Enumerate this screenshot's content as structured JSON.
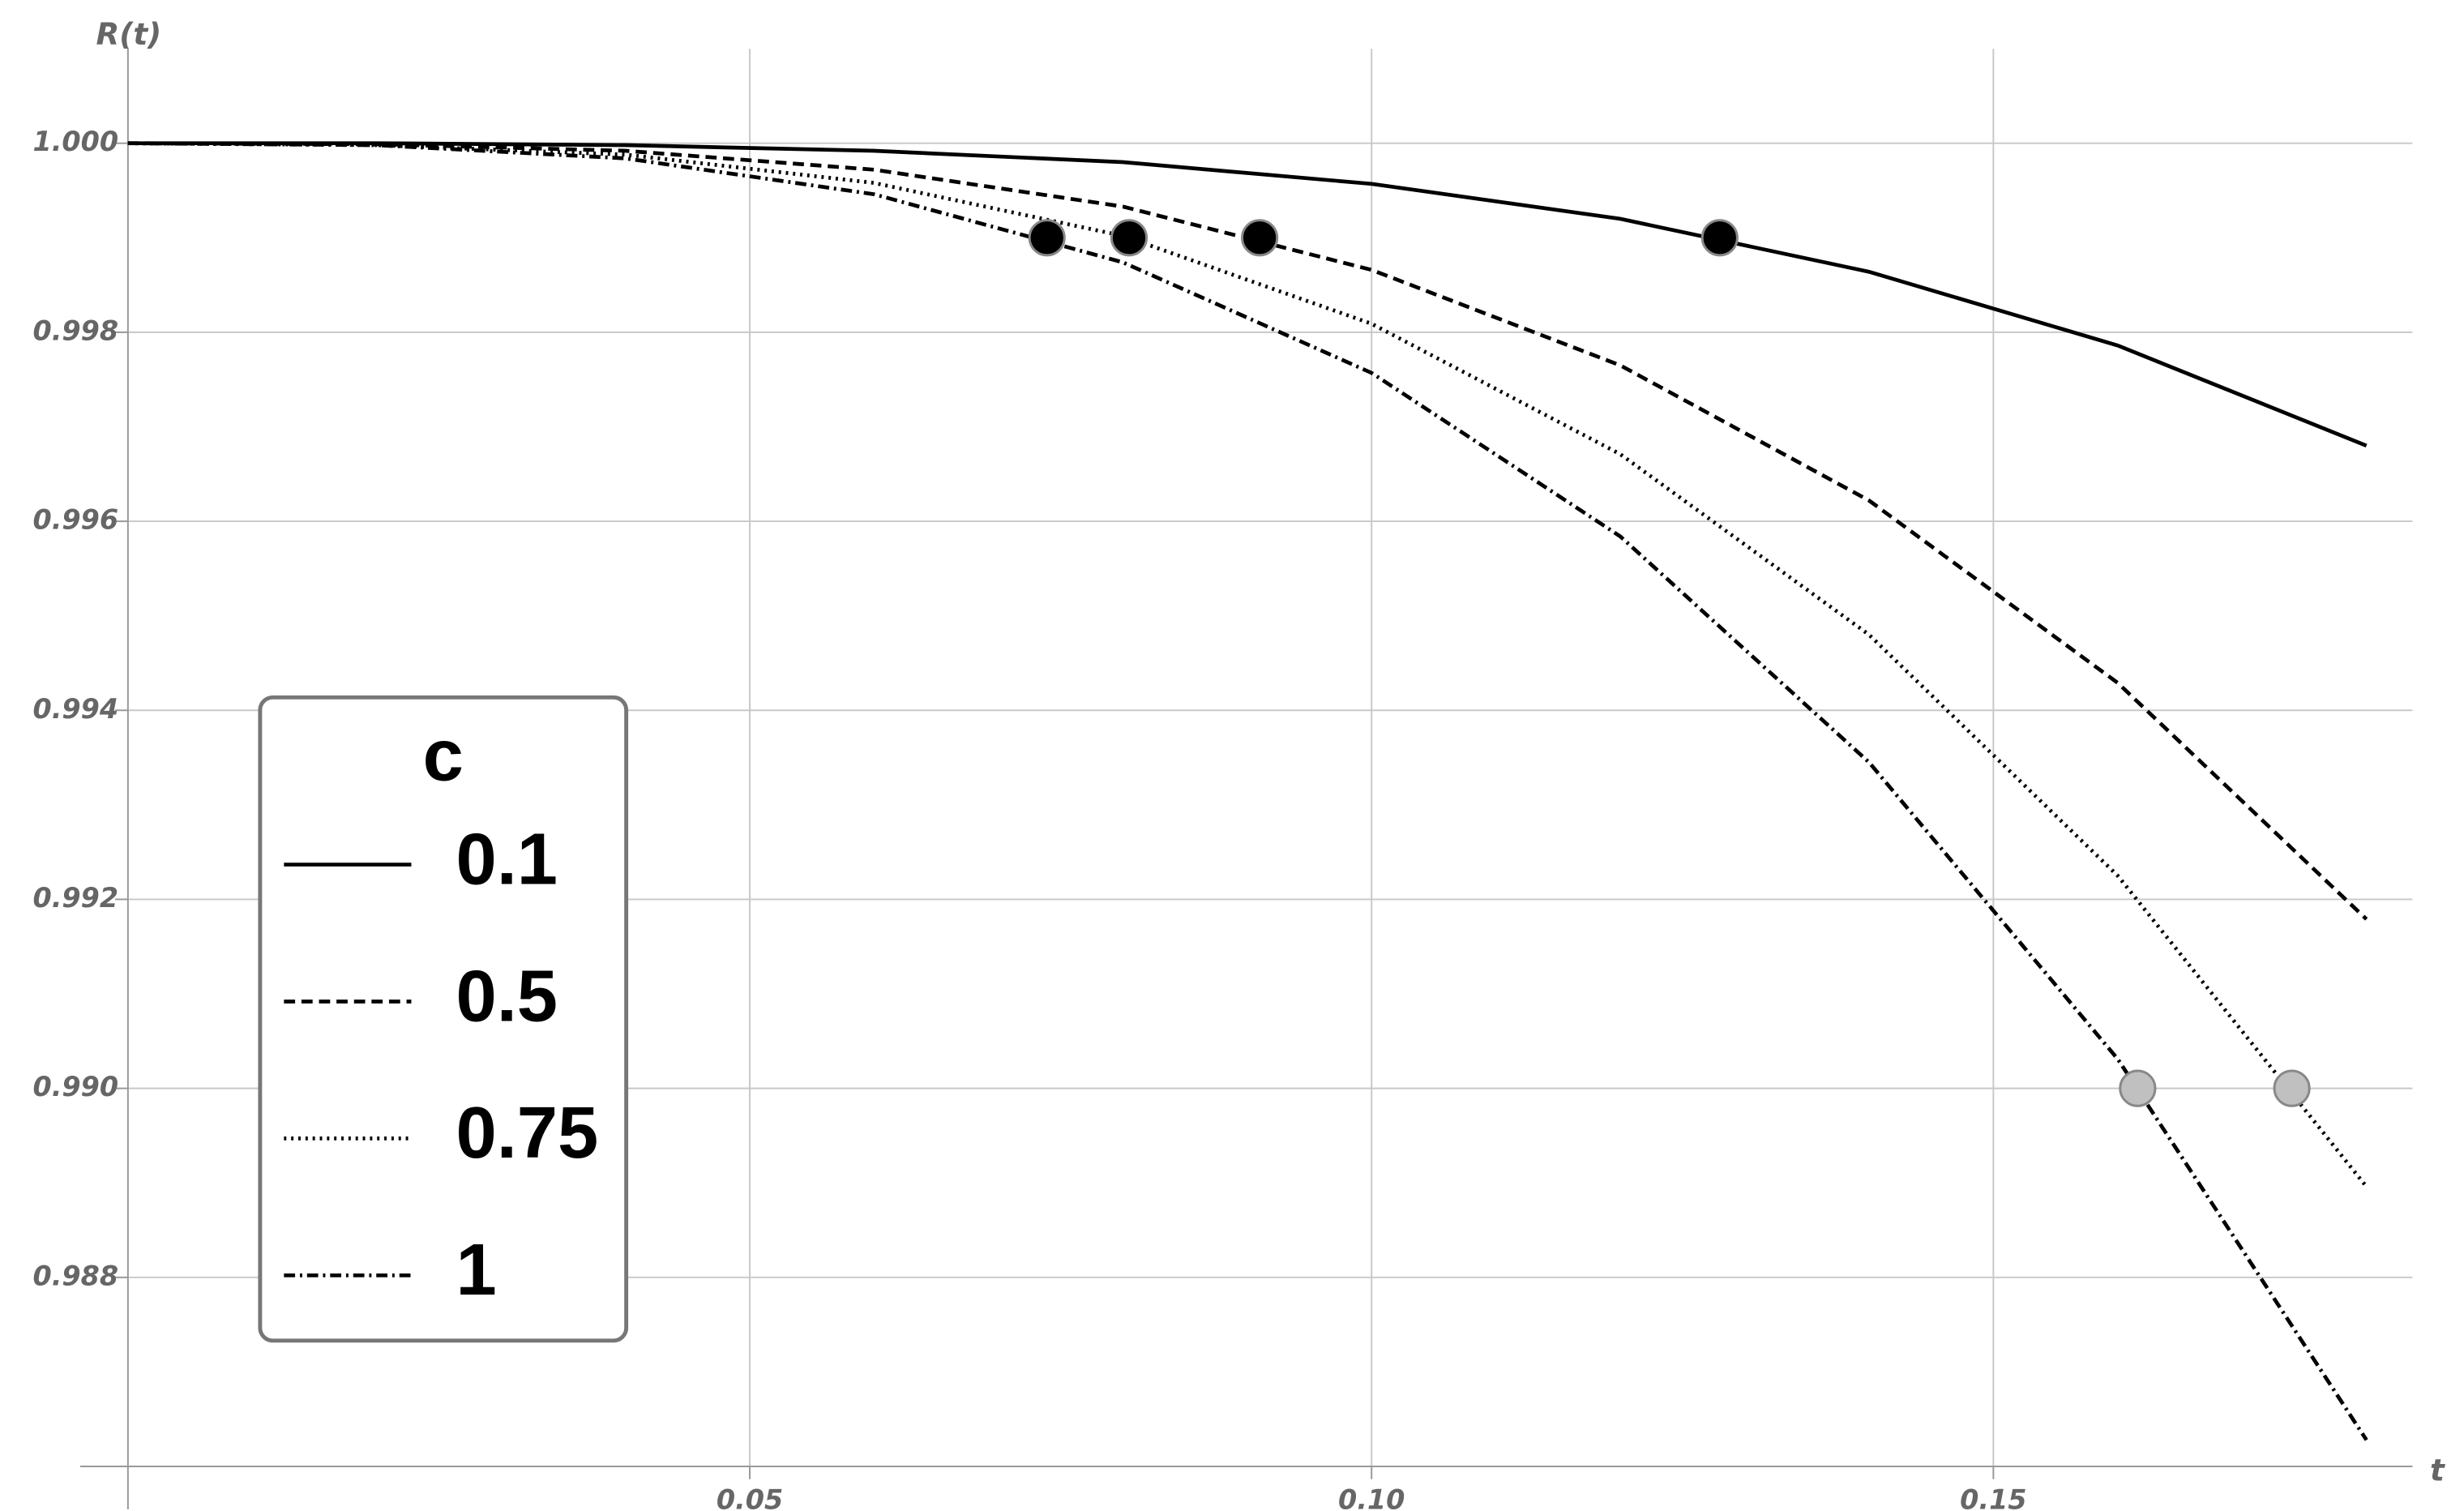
{
  "chart_data": {
    "type": "line",
    "x_label": "t",
    "y_label": "R(t)",
    "legend_title": "c",
    "legend": "left",
    "x": [
      0,
      0.02,
      0.04,
      0.06,
      0.08,
      0.1,
      0.12,
      0.14,
      0.16,
      0.18
    ],
    "series": [
      {
        "name": "0.1",
        "color": "#000000",
        "dash": "solid",
        "values": [
          1.0,
          1.0,
          0.99998,
          0.99992,
          0.9998,
          0.99957,
          0.9992,
          0.99864,
          0.99786,
          0.9968
        ]
      },
      {
        "name": "0.5",
        "color": "#000000",
        "dash": "dashed",
        "values": [
          1.0,
          0.99999,
          0.99992,
          0.99972,
          0.99933,
          0.99866,
          0.99765,
          0.99622,
          0.99429,
          0.99179
        ]
      },
      {
        "name": "0.75",
        "color": "#000000",
        "dash": "dotted",
        "values": [
          1.0,
          0.99998,
          0.99988,
          0.99958,
          0.99902,
          0.99809,
          0.99671,
          0.9948,
          0.99225,
          0.98896
        ]
      },
      {
        "name": "1",
        "color": "#000000",
        "dash": "dashdot",
        "values": [
          1.0,
          0.99998,
          0.99984,
          0.99946,
          0.99874,
          0.99757,
          0.99584,
          0.99345,
          0.99031,
          0.98628
        ]
      }
    ],
    "markers": [
      {
        "x": 0.0739,
        "y": 0.999,
        "color": "#000000"
      },
      {
        "x": 0.0805,
        "y": 0.999,
        "color": "#000000"
      },
      {
        "x": 0.091,
        "y": 0.999,
        "color": "#000000"
      },
      {
        "x": 0.128,
        "y": 0.999,
        "color": "#000000"
      },
      {
        "x": 0.1616,
        "y": 0.99,
        "color": "#c0c0c0"
      },
      {
        "x": 0.174,
        "y": 0.99,
        "color": "#c0c0c0"
      }
    ],
    "xlim": [
      0,
      0.1837
    ],
    "ylim": [
      0.986,
      1.001
    ],
    "xticks": [
      0.05,
      {
        "value": 0.1,
        "label": "0.10"
      },
      0.15
    ],
    "yticks": [
      {
        "value": 0.988,
        "label": "0.988"
      },
      {
        "value": 0.99,
        "label": "0.990"
      },
      0.992,
      0.994,
      0.996,
      0.998,
      {
        "value": 1.0,
        "label": "1.000"
      }
    ],
    "grid": true
  }
}
